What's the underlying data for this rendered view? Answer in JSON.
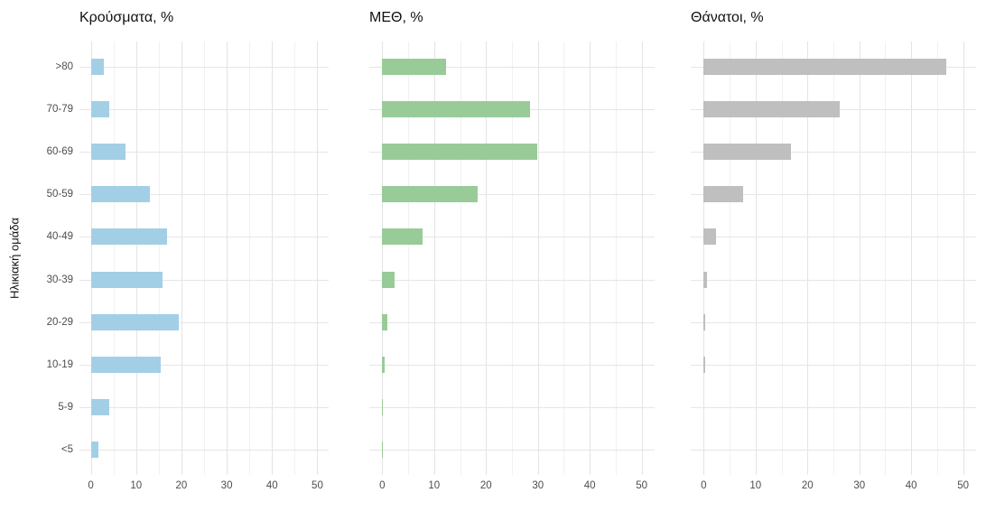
{
  "chart_data": {
    "type": "bar",
    "orientation": "horizontal",
    "y_axis_title": "Ηλικιακή ομάδα",
    "categories": [
      ">80",
      "70-79",
      "60-69",
      "50-59",
      "40-49",
      "30-39",
      "20-29",
      "10-19",
      "5-9",
      "<5"
    ],
    "xlim": [
      0,
      50
    ],
    "x_ticks": [
      0,
      10,
      20,
      30,
      40,
      50
    ],
    "grid": true,
    "legend": false,
    "panels": [
      {
        "title": "Κρούσματα, %",
        "color": "#a3cfe6",
        "values": [
          2.9,
          4.1,
          7.6,
          13.1,
          16.9,
          15.8,
          19.5,
          15.4,
          4.1,
          1.7
        ]
      },
      {
        "title": "ΜΕΘ, %",
        "color": "#99cb98",
        "values": [
          12.3,
          28.5,
          29.8,
          18.3,
          7.7,
          2.4,
          0.9,
          0.4,
          0.1,
          0.1
        ]
      },
      {
        "title": "Θάνατοι, %",
        "color": "#bfbfbf",
        "values": [
          46.8,
          26.3,
          16.8,
          7.6,
          2.4,
          0.7,
          0.2,
          0.2,
          0,
          0
        ]
      }
    ]
  }
}
